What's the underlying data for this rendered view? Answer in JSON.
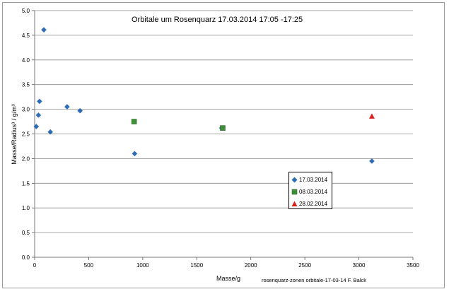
{
  "chart_data": {
    "type": "scatter",
    "title": "Orbitale um Rosenquarz 17.03.2014  17:05 -17:25",
    "xlabel": "Masse/g",
    "ylabel": "Masse/Radius³ / g/m³",
    "xlim": [
      0,
      3500
    ],
    "ylim": [
      0,
      5.0
    ],
    "x_ticks": [
      "0",
      "500",
      "1000",
      "1500",
      "2000",
      "2500",
      "3000",
      "3500"
    ],
    "y_ticks": [
      "0.0",
      "0.5",
      "1.0",
      "1.5",
      "2.0",
      "2.5",
      "3.0",
      "3.5",
      "4.0",
      "4.5",
      "5.0"
    ],
    "grid": "horizontal",
    "legend_position": "lower-right",
    "series": [
      {
        "name": "17.03.2014",
        "marker": "diamond",
        "color": "#2e6db4",
        "points": [
          [
            15,
            2.65
          ],
          [
            35,
            2.88
          ],
          [
            45,
            3.16
          ],
          [
            85,
            4.61
          ],
          [
            145,
            2.54
          ],
          [
            300,
            3.05
          ],
          [
            420,
            2.97
          ],
          [
            925,
            2.1
          ],
          [
            1730,
            2.62
          ],
          [
            3120,
            1.95
          ]
        ]
      },
      {
        "name": "08.03.2014",
        "marker": "square",
        "color": "#3f8f3a",
        "points": [
          [
            920,
            2.75
          ],
          [
            1740,
            2.62
          ]
        ]
      },
      {
        "name": "28.02.2014",
        "marker": "triangle",
        "color": "#d9231f",
        "points": [
          [
            3120,
            2.86
          ]
        ]
      }
    ]
  },
  "footnote": "rosenquarz-zonen  orbitale-17-03-14  F. Balck"
}
